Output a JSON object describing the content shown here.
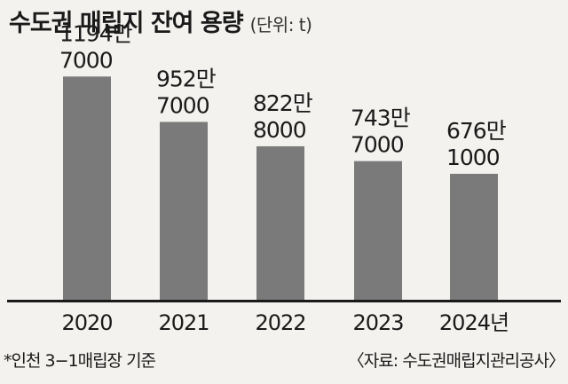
{
  "header": {
    "title": "수도권 매립지 잔여 용량",
    "unit": "(단위: t)"
  },
  "footer": {
    "note": "*인천 3−1매립장 기준",
    "source": "〈자료: 수도권매립지관리공사〉"
  },
  "chart_data": {
    "type": "bar",
    "categories": [
      "2020",
      "2021",
      "2022",
      "2023",
      "2024년"
    ],
    "values": [
      11947000,
      9527000,
      8228000,
      7437000,
      6761000
    ],
    "value_labels": [
      [
        "1194만",
        "7000"
      ],
      [
        "952만",
        "7000"
      ],
      [
        "822만",
        "8000"
      ],
      [
        "743만",
        "7000"
      ],
      [
        "676만",
        "1000"
      ]
    ],
    "ylim": [
      0,
      13000000
    ],
    "grid": false,
    "bar_color": "#7a7a7a"
  }
}
